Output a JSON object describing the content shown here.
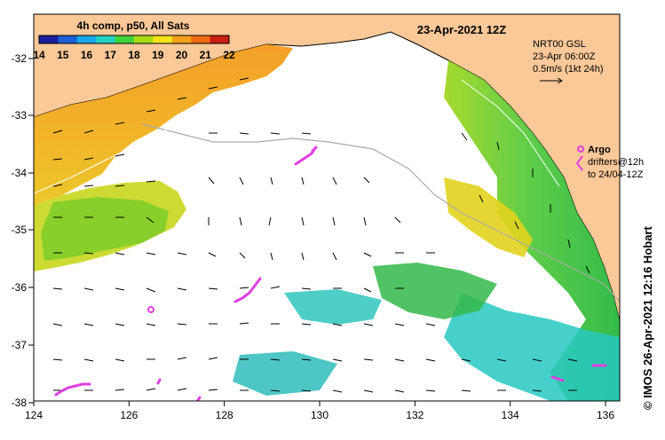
{
  "map": {
    "date_title": "23-Apr-2021 12Z",
    "colorbar": {
      "title": "4h comp, p50, All Sats",
      "ticks": [
        "14",
        "15",
        "16",
        "17",
        "18",
        "19",
        "20",
        "21",
        "22"
      ],
      "colors": [
        "#1b1f9a",
        "#1c5fd6",
        "#19a6e6",
        "#22d2c2",
        "#3fd23a",
        "#a8dd14",
        "#f5e318",
        "#f6a11b",
        "#ef6a14",
        "#c91e12"
      ]
    },
    "info": {
      "line1": "NRT00 GSL",
      "line2": "23-Apr 06:00Z",
      "line3": "0.5m/s (1kt 24h)"
    },
    "legend": {
      "argo_label": "Argo",
      "drifters_line1": "drifters@12h",
      "drifters_line2": "to 24/04-12Z",
      "argo_color": "#e040e0"
    },
    "credit": "© IMOS 26-Apr-2021 12:16 Hobart",
    "x_axis": {
      "ticks": [
        "124",
        "126",
        "128",
        "130",
        "132",
        "134",
        "136"
      ]
    },
    "y_axis": {
      "ticks": [
        "-32",
        "-33",
        "-34",
        "-35",
        "-36",
        "-37",
        "-38"
      ]
    },
    "colors": {
      "land": "#fbc898",
      "ocean_nodata": "#ffffff"
    }
  }
}
